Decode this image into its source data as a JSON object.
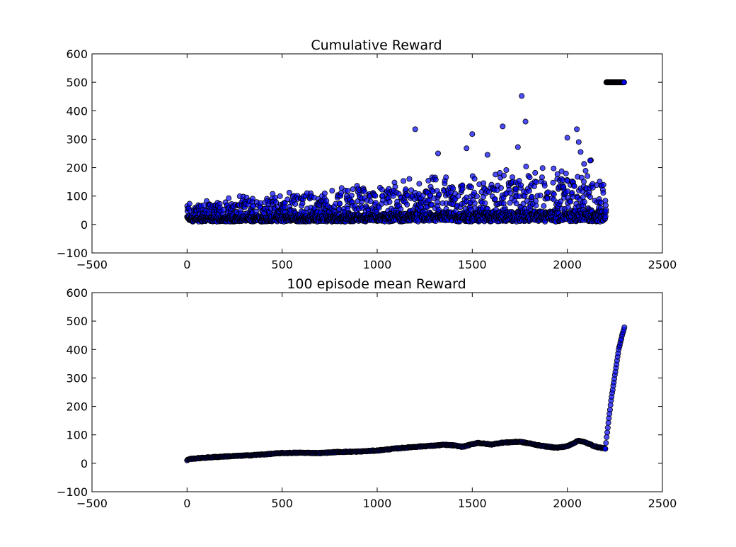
{
  "chart_data": [
    {
      "type": "scatter",
      "title": "Cumulative Reward",
      "xlabel": "",
      "ylabel": "",
      "xlim": [
        -500,
        2500
      ],
      "ylim": [
        -100,
        600
      ],
      "xticks": [
        -500,
        0,
        500,
        1000,
        1500,
        2000,
        2500
      ],
      "yticks": [
        -100,
        0,
        100,
        200,
        300,
        400,
        500,
        600
      ],
      "grid": false,
      "legend": "none",
      "marker_color": "#0000ff",
      "edge_color": "#000000",
      "n_episodes": 2300,
      "notes": "per-episode cumulative reward; most points 10-150, max ~450 near episode 1760, then constant 500 for episodes ~2200-2300",
      "highlighted_points": [
        {
          "x": 1200,
          "y": 335
        },
        {
          "x": 1500,
          "y": 318
        },
        {
          "x": 1660,
          "y": 345
        },
        {
          "x": 1760,
          "y": 452
        },
        {
          "x": 1780,
          "y": 362
        },
        {
          "x": 2000,
          "y": 305
        },
        {
          "x": 2050,
          "y": 335
        },
        {
          "x": 2060,
          "y": 290
        },
        {
          "x": 1740,
          "y": 272
        },
        {
          "x": 1470,
          "y": 268
        },
        {
          "x": 1580,
          "y": 245
        },
        {
          "x": 1320,
          "y": 250
        },
        {
          "x": 2070,
          "y": 255
        },
        {
          "x": 2120,
          "y": 225
        }
      ],
      "plateau": {
        "x_start": 2205,
        "x_end": 2300,
        "y": 500
      }
    },
    {
      "type": "scatter",
      "title": "100 episode mean Reward",
      "xlabel": "",
      "ylabel": "",
      "xlim": [
        -500,
        2500
      ],
      "ylim": [
        -100,
        600
      ],
      "xticks": [
        -500,
        0,
        500,
        1000,
        1500,
        2000,
        2500
      ],
      "yticks": [
        -100,
        0,
        100,
        200,
        300,
        400,
        500,
        600
      ],
      "grid": false,
      "legend": "none",
      "marker_color": "#0000ff",
      "edge_color": "#000000",
      "x": [
        0,
        10,
        100,
        200,
        300,
        400,
        500,
        600,
        700,
        800,
        900,
        1000,
        1100,
        1200,
        1250,
        1300,
        1350,
        1400,
        1450,
        1500,
        1530,
        1550,
        1600,
        1650,
        1700,
        1750,
        1780,
        1800,
        1850,
        1900,
        1950,
        2000,
        2030,
        2060,
        2100,
        2150,
        2200,
        2210,
        2230,
        2250,
        2270,
        2290,
        2300
      ],
      "y": [
        10,
        15,
        20,
        24,
        27,
        31,
        36,
        37,
        36,
        40,
        41,
        45,
        52,
        58,
        60,
        62,
        65,
        63,
        58,
        67,
        72,
        70,
        66,
        72,
        74,
        76,
        72,
        70,
        63,
        58,
        55,
        60,
        70,
        80,
        72,
        58,
        52,
        110,
        220,
        310,
        400,
        455,
        478
      ]
    }
  ]
}
